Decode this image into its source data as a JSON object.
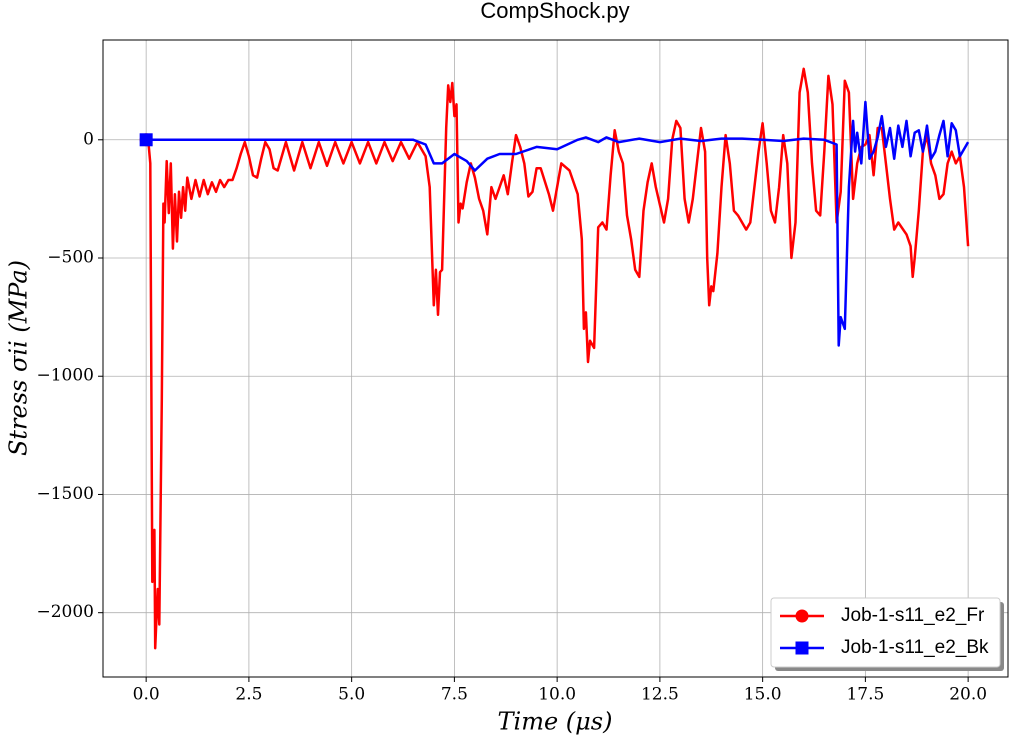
{
  "chart_data": {
    "type": "line",
    "title": "CompShock.py",
    "x_label": "Time (μs)",
    "y_label": "Stress σii (MPa)",
    "xlim": [
      -1.05,
      20.97
    ],
    "ylim": [
      -2272,
      422
    ],
    "xticks": [
      {
        "value": 0,
        "label": "0.0"
      },
      2.5,
      {
        "value": 5,
        "label": "5.0"
      },
      7.5,
      {
        "value": 10,
        "label": "10.0"
      },
      12.5,
      {
        "value": 15,
        "label": "15.0"
      },
      17.5,
      {
        "value": 20,
        "label": "20.0"
      }
    ],
    "yticks": [
      {
        "value": -2000,
        "label": "−2000"
      },
      {
        "value": -1500,
        "label": "−1500"
      },
      {
        "value": -1000,
        "label": "−1000"
      },
      {
        "value": -500,
        "label": "−500"
      },
      0
    ],
    "grid": true,
    "legend": "lower right",
    "series": [
      {
        "name": "Job-1-s11_e2_Fr",
        "color": "#ff0000",
        "marker": "circle",
        "x": [
          0,
          0.05,
          0.1,
          0.15,
          0.2,
          0.22,
          0.28,
          0.32,
          0.38,
          0.42,
          0.45,
          0.5,
          0.55,
          0.6,
          0.65,
          0.7,
          0.75,
          0.8,
          0.85,
          0.9,
          0.95,
          1.0,
          1.1,
          1.2,
          1.3,
          1.4,
          1.5,
          1.6,
          1.7,
          1.8,
          1.9,
          2.0,
          2.1,
          2.2,
          2.3,
          2.4,
          2.5,
          2.6,
          2.7,
          2.8,
          2.9,
          3.0,
          3.1,
          3.2,
          3.4,
          3.6,
          3.8,
          4.0,
          4.2,
          4.4,
          4.6,
          4.8,
          5.0,
          5.2,
          5.4,
          5.6,
          5.8,
          6.0,
          6.2,
          6.4,
          6.6,
          6.8,
          6.9,
          7.0,
          7.05,
          7.1,
          7.15,
          7.2,
          7.3,
          7.35,
          7.4,
          7.45,
          7.5,
          7.55,
          7.6,
          7.65,
          7.7,
          7.8,
          7.9,
          8.0,
          8.1,
          8.2,
          8.3,
          8.4,
          8.5,
          8.6,
          8.7,
          8.8,
          8.9,
          9.0,
          9.1,
          9.2,
          9.3,
          9.4,
          9.5,
          9.6,
          9.8,
          9.9,
          10.0,
          10.1,
          10.3,
          10.5,
          10.6,
          10.65,
          10.7,
          10.75,
          10.8,
          10.9,
          11.0,
          11.1,
          11.2,
          11.3,
          11.4,
          11.5,
          11.6,
          11.7,
          11.8,
          11.9,
          12.0,
          12.1,
          12.2,
          12.3,
          12.4,
          12.6,
          12.7,
          12.8,
          12.9,
          13.0,
          13.1,
          13.2,
          13.3,
          13.4,
          13.5,
          13.6,
          13.65,
          13.7,
          13.75,
          13.8,
          13.9,
          14.0,
          14.1,
          14.2,
          14.3,
          14.4,
          14.5,
          14.6,
          14.7,
          14.8,
          14.9,
          15.0,
          15.1,
          15.2,
          15.3,
          15.4,
          15.5,
          15.6,
          15.7,
          15.8,
          15.9,
          16.0,
          16.1,
          16.2,
          16.3,
          16.4,
          16.5,
          16.6,
          16.7,
          16.8,
          16.9,
          17.0,
          17.1,
          17.2,
          17.3,
          17.4,
          17.5,
          17.6,
          17.7,
          17.8,
          17.9,
          18.0,
          18.1,
          18.2,
          18.3,
          18.5,
          18.6,
          18.65,
          18.7,
          18.8,
          18.9,
          19.0,
          19.1,
          19.2,
          19.3,
          19.4,
          19.5,
          19.6,
          19.7,
          19.8,
          19.9,
          20.0
        ],
        "values": [
          0,
          0,
          -100,
          -1870,
          -1650,
          -2150,
          -1900,
          -2050,
          -1100,
          -270,
          -350,
          -90,
          -310,
          -100,
          -460,
          -230,
          -430,
          -220,
          -330,
          -200,
          -300,
          -160,
          -250,
          -170,
          -240,
          -170,
          -230,
          -180,
          -220,
          -170,
          -200,
          -170,
          -170,
          -120,
          -60,
          -10,
          -70,
          -150,
          -160,
          -80,
          -10,
          -40,
          -120,
          -130,
          -10,
          -130,
          -10,
          -120,
          -10,
          -110,
          -10,
          -100,
          -10,
          -100,
          -10,
          -100,
          -10,
          -90,
          -10,
          -80,
          -10,
          -70,
          -200,
          -700,
          -550,
          -740,
          -560,
          -550,
          50,
          230,
          160,
          240,
          100,
          150,
          -350,
          -270,
          -290,
          -180,
          -100,
          -160,
          -250,
          -300,
          -400,
          -200,
          -250,
          -200,
          -150,
          -230,
          -100,
          20,
          -30,
          -100,
          -240,
          -220,
          -120,
          -120,
          -230,
          -300,
          -200,
          -100,
          -130,
          -230,
          -420,
          -800,
          -730,
          -940,
          -850,
          -880,
          -370,
          -350,
          -380,
          -150,
          40,
          -50,
          -100,
          -320,
          -420,
          -550,
          -580,
          -300,
          -180,
          -100,
          -200,
          -350,
          -250,
          0,
          80,
          50,
          -250,
          -350,
          -250,
          -100,
          50,
          -50,
          -500,
          -700,
          -620,
          -640,
          -480,
          -200,
          20,
          -100,
          -300,
          -320,
          -350,
          -380,
          -350,
          -200,
          -50,
          70,
          -100,
          -300,
          -350,
          -200,
          20,
          -100,
          -500,
          -350,
          200,
          300,
          200,
          -100,
          -300,
          -320,
          -50,
          270,
          150,
          -350,
          -220,
          250,
          200,
          -250,
          -100,
          -30,
          -20,
          20,
          -150,
          50,
          50,
          -100,
          -250,
          -380,
          -350,
          -400,
          -450,
          -580,
          -500,
          -300,
          -50,
          20,
          -100,
          -150,
          -250,
          -230,
          -100,
          -50,
          -100,
          -70,
          -200,
          -450
        ]
      },
      {
        "name": "Job-1-s11_e2_Bk",
        "color": "#0000ff",
        "marker": "square",
        "x": [
          0,
          6.5,
          6.8,
          7.0,
          7.2,
          7.5,
          7.8,
          8.0,
          8.3,
          8.6,
          9.0,
          9.5,
          10.0,
          10.5,
          10.7,
          11.0,
          11.2,
          11.5,
          12.0,
          12.5,
          13.0,
          13.5,
          14.0,
          14.5,
          15.0,
          15.5,
          16.0,
          16.5,
          16.8,
          16.85,
          16.9,
          17.0,
          17.1,
          17.2,
          17.25,
          17.3,
          17.4,
          17.5,
          17.6,
          17.7,
          17.8,
          17.9,
          18.0,
          18.1,
          18.2,
          18.3,
          18.4,
          18.5,
          18.6,
          18.7,
          18.8,
          18.9,
          19.0,
          19.1,
          19.2,
          19.3,
          19.4,
          19.5,
          19.6,
          19.7,
          19.8,
          20.0
        ],
        "values": [
          0,
          0,
          -20,
          -100,
          -100,
          -60,
          -90,
          -130,
          -80,
          -60,
          -60,
          -30,
          -40,
          0,
          10,
          -10,
          10,
          -10,
          5,
          -10,
          5,
          -5,
          5,
          5,
          0,
          -5,
          5,
          0,
          -20,
          -870,
          -750,
          -800,
          -200,
          80,
          -50,
          30,
          -100,
          160,
          -80,
          -50,
          10,
          100,
          -30,
          50,
          -80,
          60,
          -30,
          80,
          -70,
          30,
          40,
          -50,
          60,
          -80,
          -50,
          20,
          80,
          -70,
          70,
          40,
          -70,
          -10
        ]
      }
    ]
  }
}
